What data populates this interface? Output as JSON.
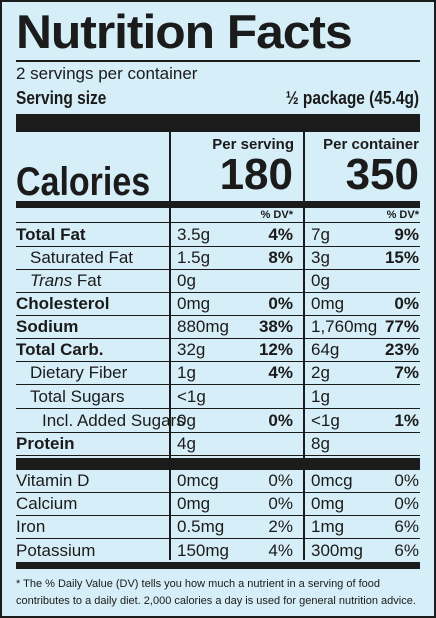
{
  "header": {
    "title": "Nutrition Facts",
    "servings_per_container": "2 servings per container",
    "serving_size_label": "Serving size",
    "serving_size_value": "½ package (45.4g)"
  },
  "columns": {
    "per_serving": "Per serving",
    "per_container": "Per container",
    "dv_label": "% DV*"
  },
  "calories": {
    "label": "Calories",
    "per_serving": "180",
    "per_container": "350"
  },
  "nutrients": [
    {
      "name": "Total Fat",
      "serving_amt": "3.5g",
      "serving_dv": "4%",
      "container_amt": "7g",
      "container_dv": "9%"
    },
    {
      "name": "Saturated Fat",
      "serving_amt": "1.5g",
      "serving_dv": "8%",
      "container_amt": "3g",
      "container_dv": "15%"
    },
    {
      "name": "Trans",
      "name_suffix": " Fat",
      "serving_amt": "0g",
      "serving_dv": "",
      "container_amt": "0g",
      "container_dv": ""
    },
    {
      "name": "Cholesterol",
      "serving_amt": "0mg",
      "serving_dv": "0%",
      "container_amt": "0mg",
      "container_dv": "0%"
    },
    {
      "name": "Sodium",
      "serving_amt": "880mg",
      "serving_dv": "38%",
      "container_amt": "1,760mg",
      "container_dv": "77%"
    },
    {
      "name": "Total Carb.",
      "serving_amt": "32g",
      "serving_dv": "12%",
      "container_amt": "64g",
      "container_dv": "23%"
    },
    {
      "name": "Dietary Fiber",
      "serving_amt": "1g",
      "serving_dv": "4%",
      "container_amt": "2g",
      "container_dv": "7%"
    },
    {
      "name": "Total Sugars",
      "serving_amt": "<1g",
      "serving_dv": "",
      "container_amt": "1g",
      "container_dv": ""
    },
    {
      "name": "Incl. Added Sugars",
      "serving_amt": "0g",
      "serving_dv": "0%",
      "container_amt": "<1g",
      "container_dv": "1%"
    },
    {
      "name": "Protein",
      "serving_amt": "4g",
      "serving_dv": "",
      "container_amt": "8g",
      "container_dv": ""
    }
  ],
  "vitamins": [
    {
      "name": "Vitamin D",
      "serving_amt": "0mcg",
      "serving_dv": "0%",
      "container_amt": "0mcg",
      "container_dv": "0%"
    },
    {
      "name": "Calcium",
      "serving_amt": "0mg",
      "serving_dv": "0%",
      "container_amt": "0mg",
      "container_dv": "0%"
    },
    {
      "name": "Iron",
      "serving_amt": "0.5mg",
      "serving_dv": "2%",
      "container_amt": "1mg",
      "container_dv": "6%"
    },
    {
      "name": "Potassium",
      "serving_amt": "150mg",
      "serving_dv": "4%",
      "container_amt": "300mg",
      "container_dv": "6%"
    }
  ],
  "footnote": "* The % Daily Value (DV) tells you how much a nutrient in a serving of food contributes to a daily diet. 2,000 calories a day is used for general nutrition advice.",
  "colors": {
    "background": "#d6eef7",
    "ink": "#1b1b1b"
  }
}
